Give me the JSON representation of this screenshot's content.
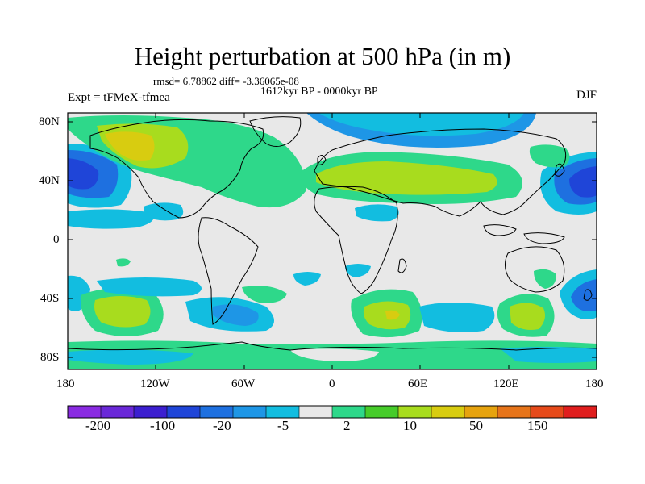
{
  "title": "Height perturbation at 500 hPa (in m)",
  "stats": "rmsd= 6.78862 diff= -3.36065e-08",
  "period": "1612kyr BP - 0000kyr BP",
  "experiment": "Expt = tFMeX-tfmea",
  "season": "DJF",
  "axes": {
    "lat_labels": [
      "80N",
      "40N",
      "0",
      "40S",
      "80S"
    ],
    "lon_labels": [
      "180",
      "120W",
      "60W",
      "0",
      "60E",
      "120E",
      "180"
    ]
  },
  "colorbar": {
    "colors": [
      "#8a2be2",
      "#6a28d8",
      "#3c1fd0",
      "#1f45d8",
      "#1e70e0",
      "#1e96e6",
      "#12bde0",
      "#e8e8e8",
      "#2ed88a",
      "#46cc2a",
      "#a8dc1e",
      "#d8cc10",
      "#e6a30e",
      "#e6741a",
      "#e64a1a",
      "#e01e1e"
    ],
    "labels": [
      "-200",
      "-100",
      "-20",
      "-5",
      "2",
      "10",
      "50",
      "150"
    ]
  },
  "region_colors": {
    "neutral": "#e8e8e8",
    "neg_light": "#12bde0",
    "neg_mid": "#1e96e6",
    "neg_strong": "#1f45d8",
    "pos_light": "#2ed88a",
    "pos_mid": "#a8dc1e",
    "pos_strong": "#d8cc10",
    "pos_extra": "#e6a30e"
  }
}
